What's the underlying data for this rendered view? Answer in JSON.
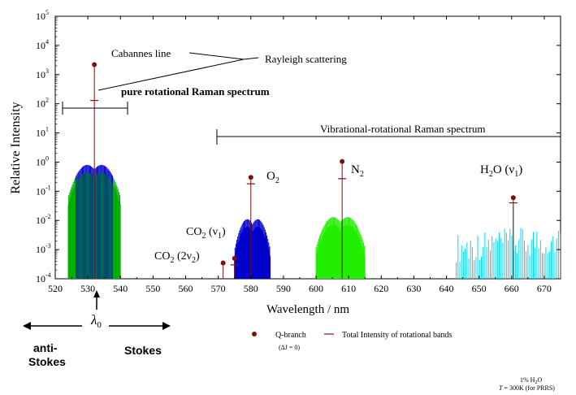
{
  "chart_data": {
    "type": "spectrum",
    "xlabel": "Wavelength / nm",
    "ylabel": "Relative Intensity",
    "xlim": [
      520,
      675
    ],
    "ylim": [
      0.0001,
      100000
    ],
    "yscale": "log",
    "x_ticks": [
      "520",
      "530",
      "540",
      "550",
      "560",
      "570",
      "580",
      "590",
      "600",
      "610",
      "620",
      "630",
      "640",
      "650",
      "660",
      "670"
    ],
    "y_ticks": [
      {
        "base": "10",
        "exp": "-4",
        "value": 0.0001
      },
      {
        "base": "10",
        "exp": "-3",
        "value": 0.001
      },
      {
        "base": "10",
        "exp": "-2",
        "value": 0.01
      },
      {
        "base": "10",
        "exp": "-1",
        "value": 0.1
      },
      {
        "base": "10",
        "exp": "0",
        "value": 1
      },
      {
        "base": "10",
        "exp": "1",
        "value": 10
      },
      {
        "base": "10",
        "exp": "2",
        "value": 100
      },
      {
        "base": "10",
        "exp": "3",
        "value": 1000
      },
      {
        "base": "10",
        "exp": "4",
        "value": 10000
      },
      {
        "base": "10",
        "exp": "5",
        "value": 100000
      }
    ],
    "colors": {
      "rotational": "#00b000",
      "rotational_inner": "#0000cc",
      "co2": "#0000cc",
      "n2": "#22ee00",
      "h2o": "#00d8f0",
      "marker": "#7a1010"
    },
    "rotational_bands": [
      {
        "name": "pure rotational",
        "center": 532,
        "halfwidth": 8,
        "peak": 0.8,
        "split": 2.2,
        "color": "#00b000",
        "inner": "#0000cc"
      },
      {
        "name": "CO2 (v1)",
        "center": 580.5,
        "halfwidth": 5.5,
        "peak": 0.011,
        "split": 1.6,
        "color": "#0000cc"
      },
      {
        "name": "N2",
        "center": 607.5,
        "halfwidth": 7.5,
        "peak": 0.013,
        "split": 2.2,
        "color": "#22ee00"
      }
    ],
    "h2o_band": {
      "x_start": 643,
      "x_end": 675,
      "color": "#00d8f0"
    },
    "q_branch_points": [
      {
        "x": 532,
        "y": 2200,
        "bar_y": 130,
        "label": "Rayleigh / Cabannes"
      },
      {
        "x": 571.5,
        "y": 0.00035,
        "label": "CO2 (2v2)"
      },
      {
        "x": 575,
        "y": 0.0005,
        "bar_y": 0.0003,
        "label": "CO2 (v1)"
      },
      {
        "x": 580,
        "y": 0.3,
        "bar_y": 0.18,
        "label": "O2"
      },
      {
        "x": 608,
        "y": 1.05,
        "bar_y": 0.27,
        "label": "N2"
      },
      {
        "x": 660.5,
        "y": 0.06,
        "bar_y": 0.04,
        "label": "H2O (v1)"
      }
    ]
  },
  "annotations": {
    "cabannes": "Cabannes line",
    "rayleigh": "Rayleigh scattering",
    "pure_rotational": "pure rotational Raman spectrum",
    "vibrational": "Vibrational-rotational Raman spectrum",
    "o2": {
      "main": "O",
      "sub": "2"
    },
    "n2": {
      "main": "N",
      "sub": "2"
    },
    "h2o": {
      "main": "H",
      "sub": "2",
      "rest": "O (ν",
      "sub2": "1",
      "close": ")"
    },
    "co2_v1": {
      "main": "CO",
      "sub": "2",
      "rest": " (ν",
      "sub2": "1",
      "close": ")"
    },
    "co2_2v2": {
      "main": "CO",
      "sub": "2",
      "rest": " (2ν",
      "sub2": "2",
      "close": ")"
    }
  },
  "lambda": {
    "symbol": "λ",
    "sub": "0"
  },
  "stokes": {
    "anti_line1": "anti-",
    "anti_line2": "Stokes",
    "stokes": "Stokes"
  },
  "legend": {
    "qbranch": "Q-branch",
    "qbranch_sub": "(ΔJ = 0)",
    "total": "Total Intensity of rotational bands"
  },
  "footnote": {
    "line1_main": "1% H",
    "line1_sub": "2",
    "line1_end": "O",
    "line2_italic": "T",
    "line2_rest": " = 300K (for PRRS)"
  }
}
